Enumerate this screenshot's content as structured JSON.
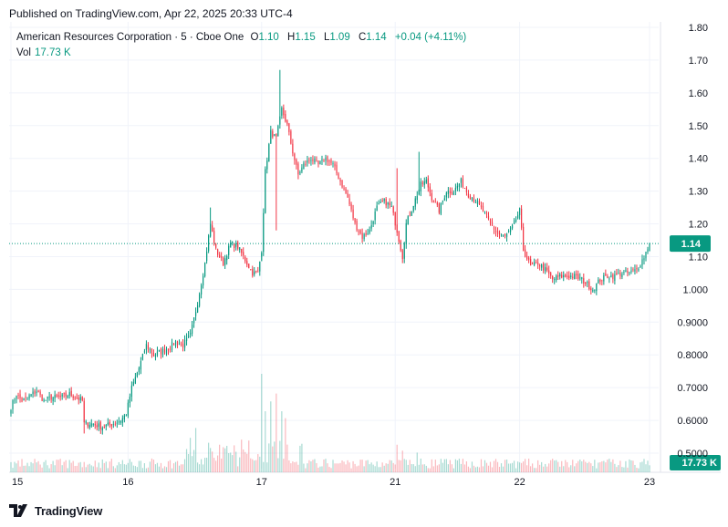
{
  "header": {
    "published": "Published on TradingView.com, Apr 22, 2025 20:33 UTC-4"
  },
  "legend": {
    "symbol": "American Resources Corporation · 5 · Cboe One",
    "open_label": "O",
    "open": "1.10",
    "high_label": "H",
    "high": "1.15",
    "low_label": "L",
    "low": "1.09",
    "close_label": "C",
    "close": "1.14",
    "change": "+0.04 (+4.11%)",
    "vol_label": "Vol",
    "vol_value": "17.73 K"
  },
  "footer": {
    "brand": "TradingView"
  },
  "colors": {
    "up": "#089981",
    "down": "#f23645",
    "grid": "#f0f3fa",
    "axis_text": "#131722",
    "price_line": "#089981"
  },
  "chart_data": {
    "type": "candlestick",
    "ylim": [
      0.49,
      1.82
    ],
    "y_ticks": [
      "0.5000",
      "0.6000",
      "0.7000",
      "0.8000",
      "0.9000",
      "1.000",
      "1.10",
      "1.20",
      "1.30",
      "1.40",
      "1.50",
      "1.60",
      "1.70",
      "1.80"
    ],
    "y_tick_values": [
      0.5,
      0.6,
      0.7,
      0.8,
      0.9,
      1.0,
      1.1,
      1.2,
      1.3,
      1.4,
      1.5,
      1.6,
      1.7,
      1.8
    ],
    "x_ticks": [
      "15",
      "16",
      "17",
      "21",
      "22",
      "23"
    ],
    "x_tick_index": [
      0,
      64,
      137,
      210,
      278,
      349
    ],
    "grid": true,
    "last_price": "1.14",
    "last_price_value": 1.14,
    "last_volume": "17.73 K",
    "anchors": [
      [
        0,
        0.64
      ],
      [
        3,
        0.68
      ],
      [
        6,
        0.66
      ],
      [
        9,
        0.67
      ],
      [
        14,
        0.69
      ],
      [
        18,
        0.66
      ],
      [
        22,
        0.67
      ],
      [
        27,
        0.67
      ],
      [
        32,
        0.68
      ],
      [
        36,
        0.67
      ],
      [
        39,
        0.66
      ],
      [
        40,
        0.59
      ],
      [
        44,
        0.59
      ],
      [
        50,
        0.58
      ],
      [
        56,
        0.59
      ],
      [
        60,
        0.6
      ],
      [
        63,
        0.62
      ],
      [
        66,
        0.7
      ],
      [
        70,
        0.76
      ],
      [
        74,
        0.83
      ],
      [
        78,
        0.8
      ],
      [
        82,
        0.81
      ],
      [
        86,
        0.82
      ],
      [
        90,
        0.84
      ],
      [
        94,
        0.83
      ],
      [
        98,
        0.86
      ],
      [
        102,
        0.96
      ],
      [
        106,
        1.08
      ],
      [
        109,
        1.2
      ],
      [
        112,
        1.12
      ],
      [
        116,
        1.08
      ],
      [
        120,
        1.14
      ],
      [
        124,
        1.13
      ],
      [
        128,
        1.09
      ],
      [
        132,
        1.05
      ],
      [
        135,
        1.05
      ],
      [
        137,
        1.12
      ],
      [
        139,
        1.36
      ],
      [
        142,
        1.48
      ],
      [
        145,
        1.46
      ],
      [
        148,
        1.55
      ],
      [
        151,
        1.5
      ],
      [
        154,
        1.42
      ],
      [
        157,
        1.35
      ],
      [
        160,
        1.38
      ],
      [
        164,
        1.4
      ],
      [
        168,
        1.38
      ],
      [
        172,
        1.4
      ],
      [
        176,
        1.38
      ],
      [
        180,
        1.33
      ],
      [
        184,
        1.28
      ],
      [
        188,
        1.2
      ],
      [
        192,
        1.16
      ],
      [
        196,
        1.18
      ],
      [
        200,
        1.25
      ],
      [
        204,
        1.27
      ],
      [
        208,
        1.25
      ],
      [
        211,
        1.18
      ],
      [
        214,
        1.1
      ],
      [
        216,
        1.2
      ],
      [
        220,
        1.26
      ],
      [
        224,
        1.32
      ],
      [
        227,
        1.33
      ],
      [
        230,
        1.28
      ],
      [
        234,
        1.24
      ],
      [
        238,
        1.3
      ],
      [
        242,
        1.3
      ],
      [
        246,
        1.33
      ],
      [
        250,
        1.29
      ],
      [
        254,
        1.27
      ],
      [
        258,
        1.24
      ],
      [
        262,
        1.2
      ],
      [
        266,
        1.17
      ],
      [
        270,
        1.16
      ],
      [
        274,
        1.19
      ],
      [
        278,
        1.24
      ],
      [
        280,
        1.12
      ],
      [
        284,
        1.07
      ],
      [
        288,
        1.08
      ],
      [
        292,
        1.06
      ],
      [
        296,
        1.03
      ],
      [
        300,
        1.04
      ],
      [
        304,
        1.04
      ],
      [
        308,
        1.04
      ],
      [
        312,
        1.03
      ],
      [
        316,
        1.01
      ],
      [
        318,
        1.0
      ],
      [
        322,
        1.03
      ],
      [
        326,
        1.04
      ],
      [
        330,
        1.04
      ],
      [
        334,
        1.05
      ],
      [
        338,
        1.05
      ],
      [
        342,
        1.06
      ],
      [
        346,
        1.1
      ],
      [
        349,
        1.14
      ]
    ],
    "spikes": [
      {
        "i": 109,
        "high": 1.25
      },
      {
        "i": 147,
        "high": 1.67
      },
      {
        "i": 145,
        "low": 1.18
      },
      {
        "i": 137,
        "low": 1.1
      },
      {
        "i": 211,
        "high": 1.37
      },
      {
        "i": 223,
        "high": 1.42
      },
      {
        "i": 214,
        "low": 1.08
      },
      {
        "i": 278,
        "high": 1.25
      },
      {
        "i": 318,
        "low": 0.99
      },
      {
        "i": 40,
        "low": 0.56
      }
    ],
    "volume_spikes": [
      {
        "i": 137,
        "v": 1.0
      },
      {
        "i": 139,
        "v": 0.62
      },
      {
        "i": 142,
        "v": 0.72
      },
      {
        "i": 145,
        "v": 0.8
      },
      {
        "i": 148,
        "v": 0.62
      },
      {
        "i": 150,
        "v": 0.55
      },
      {
        "i": 98,
        "v": 0.35
      },
      {
        "i": 101,
        "v": 0.45
      },
      {
        "i": 108,
        "v": 0.3
      },
      {
        "i": 211,
        "v": 0.28
      },
      {
        "i": 214,
        "v": 0.22
      },
      {
        "i": 222,
        "v": 0.2
      },
      {
        "i": 278,
        "v": 0.1
      }
    ]
  }
}
